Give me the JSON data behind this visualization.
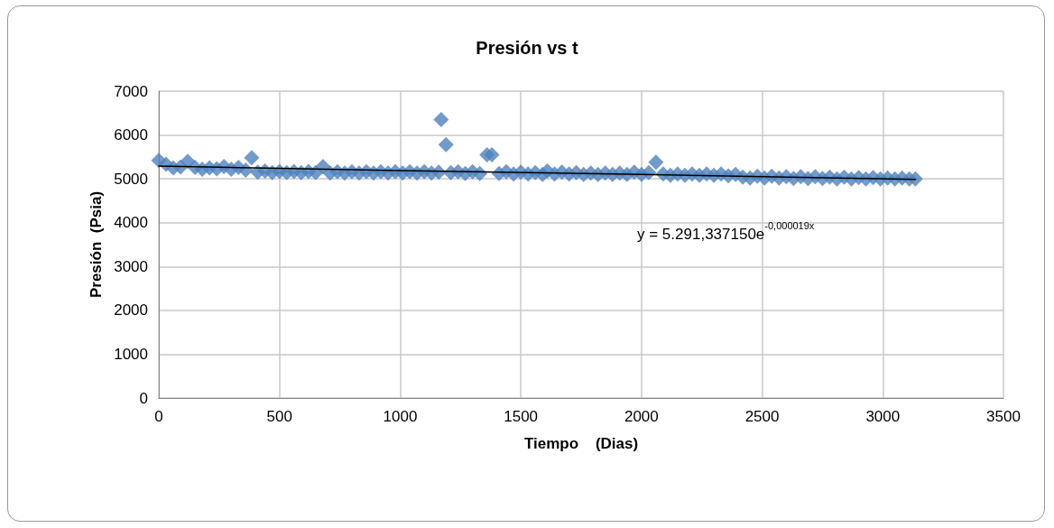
{
  "chart_data": {
    "type": "scatter",
    "title": "Presión vs t",
    "xlabel": "Tiempo    (Dias)",
    "ylabel": "Presión  (Psia)",
    "xlim": [
      0,
      3500
    ],
    "xticks": [
      0,
      500,
      1000,
      1500,
      2000,
      2500,
      3000,
      3500
    ],
    "ylim": [
      0,
      7000
    ],
    "yticks": [
      0,
      1000,
      2000,
      3000,
      4000,
      5000,
      6000,
      7000
    ],
    "grid": true,
    "marker": "diamond",
    "annotations": [
      "y = 5.291,337150e$^{-0,000019x}$"
    ],
    "series": [
      {
        "color": "#4f81bd",
        "x": [
          0,
          30,
          60,
          90,
          120,
          150,
          180,
          210,
          240,
          270,
          300,
          330,
          360,
          385,
          410,
          440,
          470,
          500,
          530,
          560,
          590,
          620,
          650,
          680,
          710,
          740,
          770,
          800,
          830,
          860,
          890,
          920,
          950,
          980,
          1010,
          1040,
          1070,
          1100,
          1130,
          1160,
          1170,
          1190,
          1210,
          1240,
          1270,
          1300,
          1330,
          1360,
          1380,
          1410,
          1440,
          1470,
          1500,
          1530,
          1560,
          1590,
          1610,
          1640,
          1670,
          1700,
          1730,
          1760,
          1790,
          1820,
          1850,
          1880,
          1910,
          1940,
          1970,
          2000,
          2030,
          2060,
          2090,
          2120,
          2150,
          2180,
          2210,
          2240,
          2270,
          2300,
          2330,
          2360,
          2390,
          2420,
          2450,
          2480,
          2510,
          2540,
          2570,
          2600,
          2630,
          2660,
          2690,
          2720,
          2750,
          2780,
          2810,
          2840,
          2870,
          2900,
          2930,
          2960,
          2990,
          3020,
          3050,
          3080,
          3110,
          3135
        ],
        "values": [
          5420,
          5330,
          5250,
          5270,
          5400,
          5260,
          5220,
          5250,
          5230,
          5280,
          5220,
          5260,
          5200,
          5480,
          5150,
          5180,
          5140,
          5170,
          5140,
          5170,
          5140,
          5170,
          5140,
          5280,
          5130,
          5160,
          5130,
          5160,
          5130,
          5160,
          5130,
          5160,
          5130,
          5160,
          5130,
          5160,
          5130,
          5160,
          5130,
          5150,
          6350,
          5780,
          5140,
          5160,
          5120,
          5160,
          5120,
          5550,
          5550,
          5120,
          5160,
          5110,
          5150,
          5110,
          5140,
          5100,
          5180,
          5110,
          5150,
          5110,
          5140,
          5100,
          5130,
          5100,
          5130,
          5100,
          5130,
          5100,
          5150,
          5100,
          5140,
          5380,
          5110,
          5080,
          5110,
          5080,
          5110,
          5080,
          5110,
          5080,
          5110,
          5070,
          5100,
          5040,
          5020,
          5060,
          5020,
          5060,
          5020,
          5050,
          5010,
          5050,
          5010,
          5050,
          5010,
          5040,
          5000,
          5040,
          5000,
          5030,
          5000,
          5030,
          5000,
          5020,
          5000,
          5020,
          5000,
          5000
        ]
      },
      {
        "type": "line",
        "color": "#000000",
        "marker": "none",
        "x": [
          0,
          1000,
          2000,
          3135
        ],
        "values": [
          5290,
          5190,
          5100,
          4990
        ]
      }
    ]
  }
}
